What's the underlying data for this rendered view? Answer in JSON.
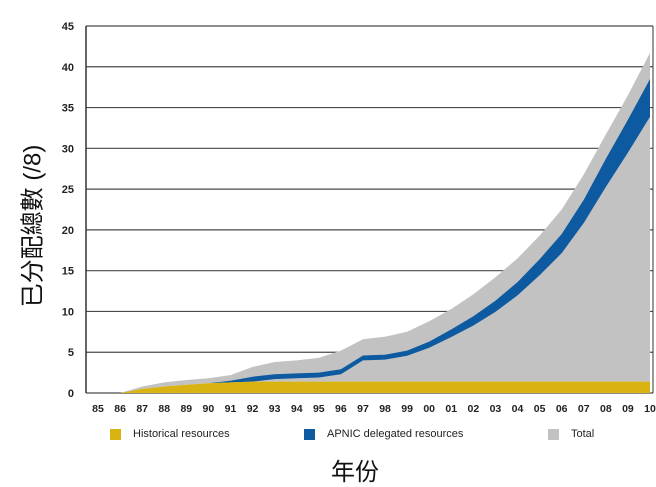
{
  "chart_data": {
    "type": "area",
    "title": "",
    "xlabel": "年份",
    "ylabel": "已分配總數 (/8)",
    "x": [
      "85",
      "86",
      "87",
      "88",
      "89",
      "90",
      "91",
      "92",
      "93",
      "94",
      "95",
      "96",
      "97",
      "98",
      "99",
      "00",
      "01",
      "02",
      "03",
      "04",
      "05",
      "06",
      "07",
      "08",
      "09",
      "10"
    ],
    "ylim": [
      0,
      45
    ],
    "yticks": [
      0,
      5,
      10,
      15,
      20,
      25,
      30,
      35,
      40,
      45
    ],
    "grid": true,
    "legend_position": "bottom",
    "colors": {
      "historical": "#d9b311",
      "apnic": "#0d5aa0",
      "total": "#c2c2c2"
    },
    "series": [
      {
        "name": "Historical resources",
        "values": [
          0,
          0,
          0.5,
          0.8,
          1.0,
          1.2,
          1.3,
          1.4,
          1.4,
          1.4,
          1.4,
          1.4,
          1.4,
          1.4,
          1.4,
          1.4,
          1.4,
          1.4,
          1.4,
          1.4,
          1.4,
          1.4,
          1.4,
          1.4,
          1.4,
          1.4
        ]
      },
      {
        "name": "APNIC delegated resources",
        "values": [
          0,
          0,
          0,
          0,
          0,
          0,
          0.2,
          0.6,
          0.9,
          1.0,
          1.1,
          1.5,
          3.2,
          3.3,
          3.8,
          4.9,
          6.4,
          8.0,
          9.9,
          12.2,
          15.0,
          18.1,
          22.3,
          27.3,
          32.1,
          37.1
        ]
      },
      {
        "name": "Total",
        "values": [
          0,
          0,
          0.8,
          1.3,
          1.6,
          1.8,
          2.2,
          3.2,
          3.8,
          4.0,
          4.3,
          5.2,
          6.6,
          6.9,
          7.5,
          8.8,
          10.3,
          12.1,
          14.2,
          16.5,
          19.3,
          22.5,
          26.8,
          31.7,
          36.5,
          41.7
        ]
      }
    ]
  }
}
